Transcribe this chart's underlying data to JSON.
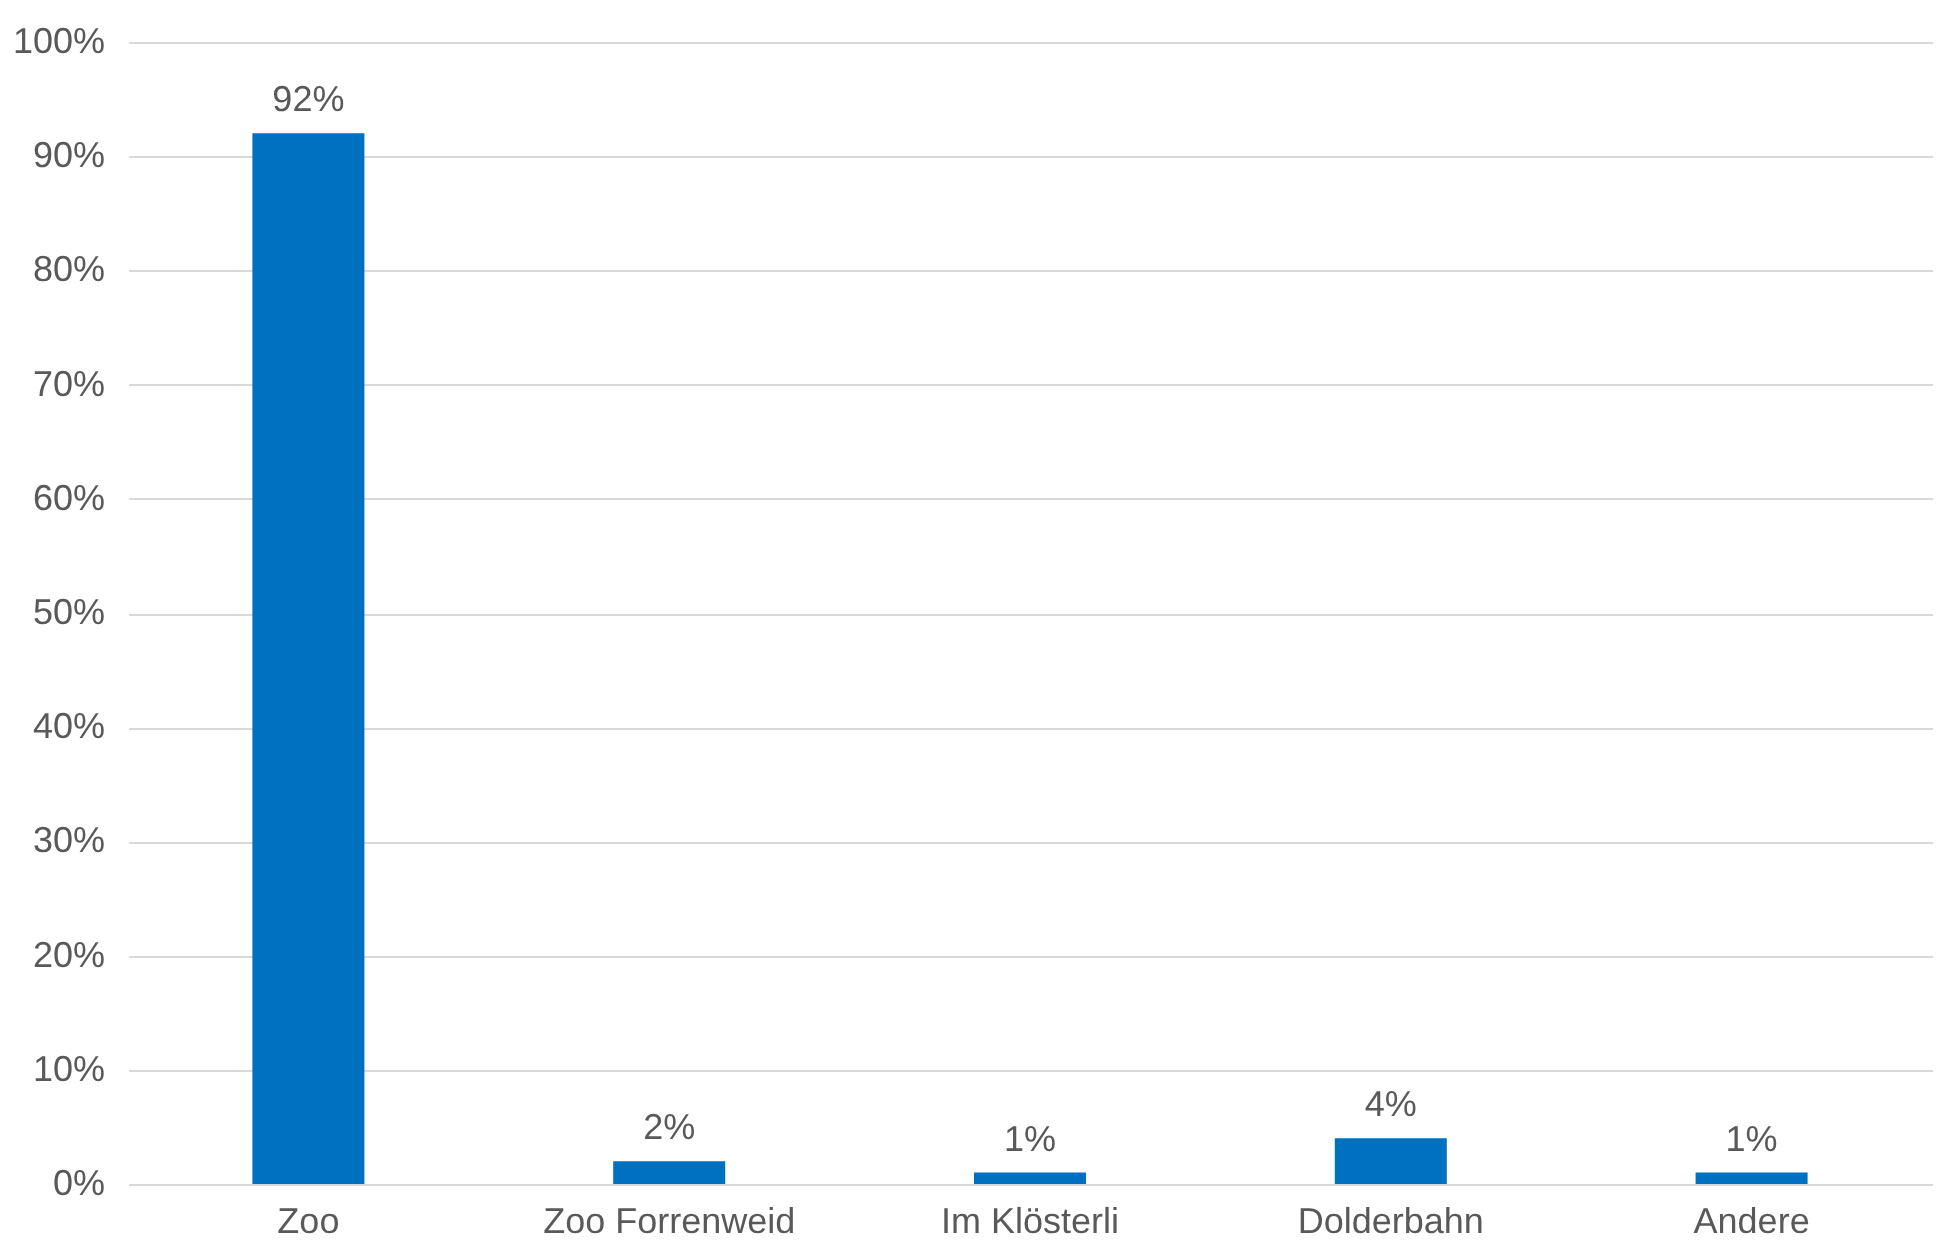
{
  "chart_data": {
    "type": "bar",
    "categories": [
      "Zoo",
      "Zoo Forrenweid",
      "Im Klösterli",
      "Dolderbahn",
      "Andere"
    ],
    "values": [
      92,
      2,
      1,
      4,
      1
    ],
    "value_labels": [
      "92%",
      "2%",
      "1%",
      "4%",
      "1%"
    ],
    "color": "#0070c0",
    "ylim": [
      0,
      100
    ],
    "yticks": [
      {
        "value": 0,
        "label": "0%"
      },
      {
        "value": 10,
        "label": "10%"
      },
      {
        "value": 20,
        "label": "20%"
      },
      {
        "value": 30,
        "label": "30%"
      },
      {
        "value": 40,
        "label": "40%"
      },
      {
        "value": 50,
        "label": "50%"
      },
      {
        "value": 60,
        "label": "60%"
      },
      {
        "value": 70,
        "label": "70%"
      },
      {
        "value": 80,
        "label": "80%"
      },
      {
        "value": 90,
        "label": "90%"
      },
      {
        "value": 100,
        "label": "100%"
      }
    ],
    "grid": "y"
  }
}
